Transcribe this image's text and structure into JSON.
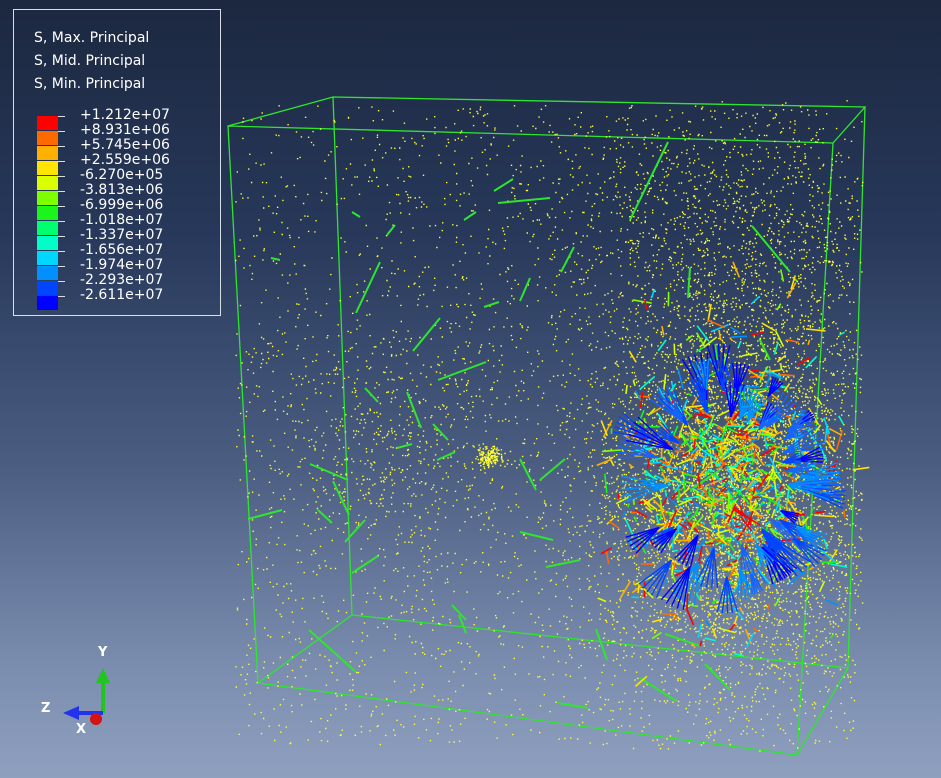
{
  "legend": {
    "titles": [
      "S, Max. Principal",
      "S, Mid. Principal",
      "S, Min. Principal"
    ],
    "values": [
      "+1.212e+07",
      "+8.931e+06",
      "+5.745e+06",
      "+2.559e+06",
      "-6.270e+05",
      "-3.813e+06",
      "-6.999e+06",
      "-1.018e+07",
      "-1.337e+07",
      "-1.656e+07",
      "-1.974e+07",
      "-2.293e+07",
      "-2.611e+07"
    ],
    "colors": [
      "#ff0000",
      "#ff6a00",
      "#ffb000",
      "#ffe400",
      "#d9ff00",
      "#7dff00",
      "#1cf51c",
      "#00ff6e",
      "#00ffc8",
      "#00d7ff",
      "#0090ff",
      "#0046ff",
      "#0000ff"
    ]
  },
  "triad": {
    "y_label": "Y",
    "z_label": "Z",
    "x_label": "X"
  },
  "scene": {
    "box_color": "#2ee62e",
    "dot_color": "#ffff33",
    "rod_color": "#2ee62e"
  }
}
